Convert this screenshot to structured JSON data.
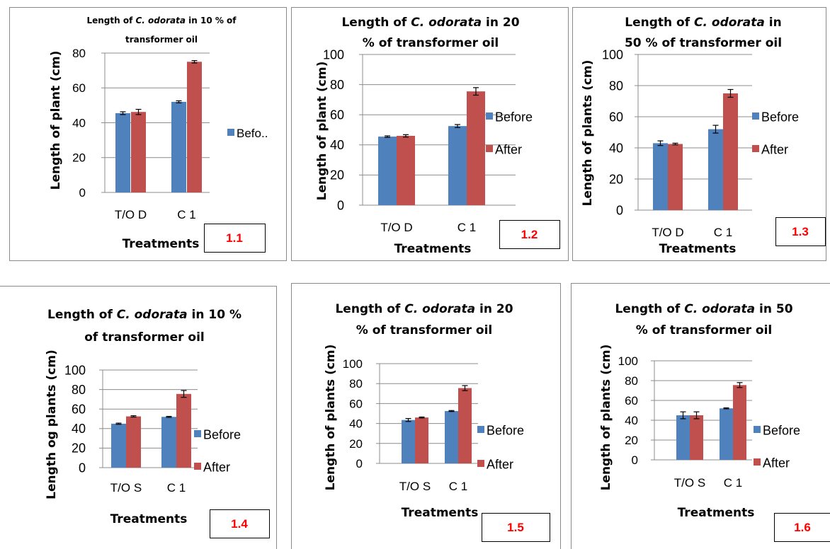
{
  "chart_data": [
    {
      "type": "bar",
      "title": [
        "Length of ",
        "C. odorata",
        " in 10 % of",
        "transformer oil"
      ],
      "ylabel": "Length of plant (cm)",
      "xlabel": "Treatments",
      "categories": [
        "T/O D",
        "C 1"
      ],
      "ylim": [
        0,
        80
      ],
      "yticks": [
        "0",
        "20",
        "40",
        "60",
        "80"
      ],
      "series": [
        {
          "name": "Befo..",
          "color": "#4f81bd",
          "values": [
            45.5,
            52
          ],
          "errors": [
            0.8,
            0.6
          ]
        },
        {
          "name": "",
          "color": "#c0504d",
          "values": [
            46.2,
            75
          ],
          "errors": [
            1.5,
            0.7
          ]
        }
      ],
      "legend": [
        "Befo.."
      ],
      "label": "1.1"
    },
    {
      "type": "bar",
      "title": [
        "Length of ",
        "C. odorata",
        " in 20",
        "% of transformer oil"
      ],
      "ylabel": "Length of plant (cm)",
      "xlabel": "Treatments",
      "categories": [
        "T/O D",
        "C 1"
      ],
      "ylim": [
        0,
        100
      ],
      "yticks": [
        "0",
        "20",
        "40",
        "60",
        "80",
        "100"
      ],
      "series": [
        {
          "name": "Before",
          "color": "#4f81bd",
          "values": [
            45.5,
            52.5
          ],
          "errors": [
            0.5,
            1
          ]
        },
        {
          "name": "After",
          "color": "#c0504d",
          "values": [
            46,
            75.5
          ],
          "errors": [
            0.8,
            2.5
          ]
        }
      ],
      "legend": [
        "Before",
        "After"
      ],
      "label": "1.2"
    },
    {
      "type": "bar",
      "title": [
        "Length of ",
        "C. odorata",
        " in",
        "50 % of transformer oil"
      ],
      "ylabel": "Length of plants (cm)",
      "xlabel": "Treatments",
      "categories": [
        "T/O D",
        "C 1"
      ],
      "ylim": [
        0,
        100
      ],
      "yticks": [
        "0",
        "20",
        "40",
        "60",
        "80",
        "100"
      ],
      "series": [
        {
          "name": "Before",
          "color": "#4f81bd",
          "values": [
            43,
            52
          ],
          "errors": [
            1.5,
            2.5
          ]
        },
        {
          "name": "After",
          "color": "#c0504d",
          "values": [
            42.5,
            75
          ],
          "errors": [
            0.5,
            2.5
          ]
        }
      ],
      "legend": [
        "Before",
        "After"
      ],
      "label": "1.3"
    },
    {
      "type": "bar",
      "title": [
        "Length of ",
        "C. odorata",
        " in 10 %",
        "of transformer oil"
      ],
      "ylabel": "Length og plants (cm)",
      "xlabel": "Treatments",
      "categories": [
        "T/O S",
        "C 1"
      ],
      "ylim": [
        0,
        100
      ],
      "yticks": [
        "0",
        "20",
        "40",
        "60",
        "80",
        "100"
      ],
      "series": [
        {
          "name": "Before",
          "color": "#4f81bd",
          "values": [
            45,
            52
          ],
          "errors": [
            0.6,
            0.5
          ]
        },
        {
          "name": "After",
          "color": "#c0504d",
          "values": [
            52.5,
            75.5
          ],
          "errors": [
            0.7,
            3.5
          ]
        }
      ],
      "legend": [
        "Before",
        "After"
      ],
      "label": "1.4"
    },
    {
      "type": "bar",
      "title": [
        "Length of ",
        "C. odorata",
        " in 20",
        "% of transformer oil"
      ],
      "ylabel": "Length of plants (cm)",
      "xlabel": "Treatments",
      "categories": [
        "T/O S",
        "C 1"
      ],
      "ylim": [
        0,
        100
      ],
      "yticks": [
        "0",
        "20",
        "40",
        "60",
        "80",
        "100"
      ],
      "series": [
        {
          "name": "Before",
          "color": "#4f81bd",
          "values": [
            43.5,
            52.5
          ],
          "errors": [
            1.5,
            0.5
          ]
        },
        {
          "name": "After",
          "color": "#c0504d",
          "values": [
            46,
            75.5
          ],
          "errors": [
            0.5,
            2.5
          ]
        }
      ],
      "legend": [
        "Before",
        "After"
      ],
      "label": "1.5"
    },
    {
      "type": "bar",
      "title": [
        "Length of ",
        "C. odorata",
        " in 50",
        "% of transformer oil"
      ],
      "ylabel": "Length of plants (cm)",
      "xlabel": "Treatments",
      "categories": [
        "T/O S",
        "C 1"
      ],
      "ylim": [
        0,
        100
      ],
      "yticks": [
        "0",
        "20",
        "40",
        "60",
        "80",
        "100"
      ],
      "series": [
        {
          "name": "Before",
          "color": "#4f81bd",
          "values": [
            45,
            52
          ],
          "errors": [
            3.5,
            0.5
          ]
        },
        {
          "name": "After",
          "color": "#c0504d",
          "values": [
            45,
            75.5
          ],
          "errors": [
            3.5,
            2.5
          ]
        }
      ],
      "legend": [
        "Before",
        "After"
      ],
      "label": "1.6"
    }
  ]
}
